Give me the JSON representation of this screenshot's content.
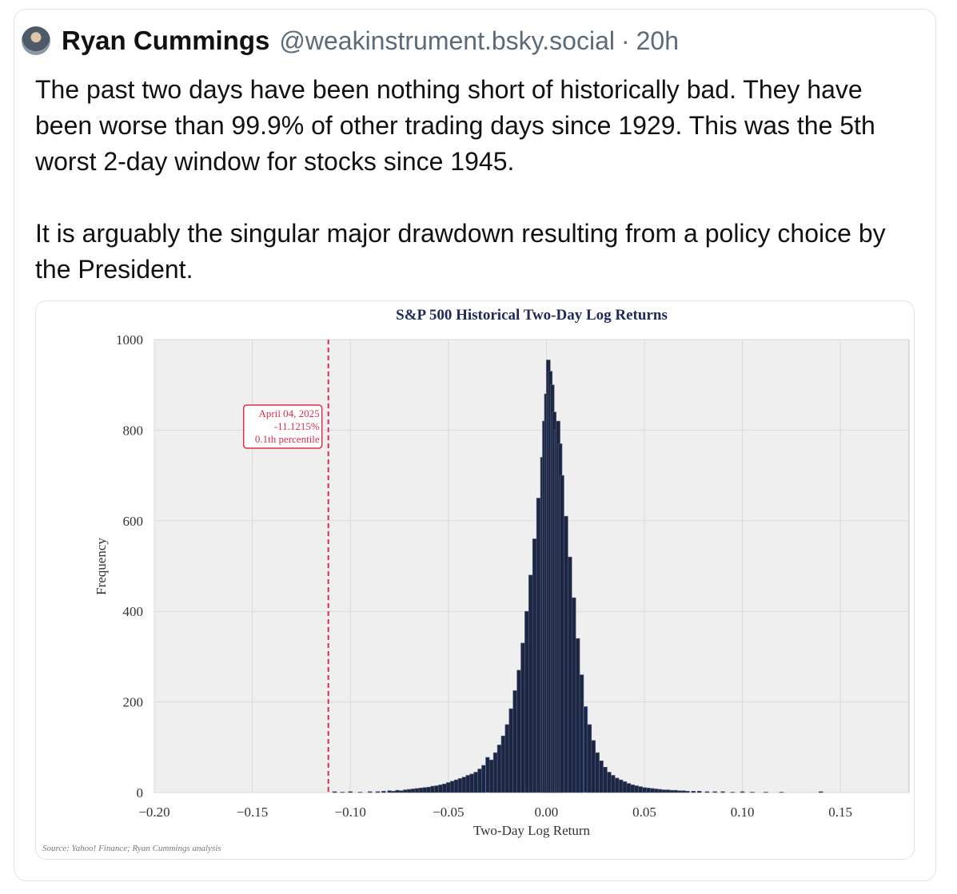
{
  "post": {
    "author_name": "Ryan Cummings",
    "handle": "@weakinstrument.bsky.social",
    "separator": "·",
    "time": "20h",
    "paragraph1": "The past two days have been nothing short of historically bad. They have been worse than 99.9% of other trading days since 1929. This was the 5th worst 2-day window for stocks since 1945.",
    "paragraph2": "It is arguably the singular major drawdown resulting from a policy choice by the President."
  },
  "colors": {
    "bar_fill": "#1c2541",
    "bar_edge": "#55627e",
    "marker_red": "#dc2f4c",
    "title_navy": "#1f2a5a",
    "plot_bg": "#efefef",
    "highlight_bar_edge": "#6a9ae0"
  },
  "chart_data": {
    "type": "bar",
    "title": "S&P 500 Historical Two-Day Log Returns",
    "xlabel": "Two-Day Log Return",
    "ylabel": "Frequency",
    "source": "Source: Yahoo! Finance; Ryan Cummings analysis",
    "xlim": [
      -0.2,
      0.185
    ],
    "ylim": [
      0,
      1000
    ],
    "x_ticks": [
      -0.2,
      -0.15,
      -0.1,
      -0.05,
      0.0,
      0.05,
      0.1,
      0.15
    ],
    "x_tick_labels": [
      "−0.20",
      "−0.15",
      "−0.10",
      "−0.05",
      "0.00",
      "0.05",
      "0.10",
      "0.15"
    ],
    "y_ticks": [
      0,
      200,
      400,
      600,
      800,
      1000
    ],
    "y_tick_labels": [
      "0",
      "200",
      "400",
      "600",
      "800",
      "1000"
    ],
    "grid": true,
    "bin_width": 0.001,
    "bins": [
      [
        -0.108,
        2
      ],
      [
        -0.104,
        1
      ],
      [
        -0.1,
        2
      ],
      [
        -0.095,
        1
      ],
      [
        -0.09,
        2
      ],
      [
        -0.086,
        2
      ],
      [
        -0.083,
        3
      ],
      [
        -0.08,
        4
      ],
      [
        -0.078,
        3
      ],
      [
        -0.076,
        5
      ],
      [
        -0.074,
        4
      ],
      [
        -0.072,
        6
      ],
      [
        -0.07,
        7
      ],
      [
        -0.068,
        8
      ],
      [
        -0.066,
        9
      ],
      [
        -0.064,
        10
      ],
      [
        -0.062,
        11
      ],
      [
        -0.06,
        12
      ],
      [
        -0.058,
        14
      ],
      [
        -0.056,
        15
      ],
      [
        -0.054,
        17
      ],
      [
        -0.052,
        19
      ],
      [
        -0.05,
        22
      ],
      [
        -0.048,
        25
      ],
      [
        -0.046,
        28
      ],
      [
        -0.044,
        31
      ],
      [
        -0.042,
        34
      ],
      [
        -0.04,
        38
      ],
      [
        -0.038,
        41
      ],
      [
        -0.036,
        45
      ],
      [
        -0.034,
        52
      ],
      [
        -0.032,
        60
      ],
      [
        -0.03,
        78
      ],
      [
        -0.028,
        72
      ],
      [
        -0.026,
        88
      ],
      [
        -0.024,
        105
      ],
      [
        -0.022,
        125
      ],
      [
        -0.02,
        150
      ],
      [
        -0.018,
        185
      ],
      [
        -0.016,
        225
      ],
      [
        -0.014,
        270
      ],
      [
        -0.012,
        330
      ],
      [
        -0.01,
        400
      ],
      [
        -0.008,
        480
      ],
      [
        -0.006,
        560
      ],
      [
        -0.004,
        650
      ],
      [
        -0.002,
        740
      ],
      [
        -0.001,
        820
      ],
      [
        0.0,
        880
      ],
      [
        0.001,
        955
      ],
      [
        0.002,
        930
      ],
      [
        0.003,
        900
      ],
      [
        0.004,
        840
      ],
      [
        0.005,
        800
      ],
      [
        0.006,
        820
      ],
      [
        0.007,
        770
      ],
      [
        0.008,
        700
      ],
      [
        0.01,
        610
      ],
      [
        0.012,
        520
      ],
      [
        0.014,
        430
      ],
      [
        0.016,
        340
      ],
      [
        0.018,
        260
      ],
      [
        0.02,
        190
      ],
      [
        0.022,
        150
      ],
      [
        0.024,
        115
      ],
      [
        0.026,
        88
      ],
      [
        0.028,
        70
      ],
      [
        0.03,
        56
      ],
      [
        0.032,
        45
      ],
      [
        0.034,
        38
      ],
      [
        0.036,
        32
      ],
      [
        0.038,
        28
      ],
      [
        0.04,
        24
      ],
      [
        0.042,
        20
      ],
      [
        0.044,
        17
      ],
      [
        0.046,
        15
      ],
      [
        0.048,
        13
      ],
      [
        0.05,
        11
      ],
      [
        0.052,
        10
      ],
      [
        0.054,
        9
      ],
      [
        0.056,
        8
      ],
      [
        0.058,
        7
      ],
      [
        0.06,
        6
      ],
      [
        0.062,
        6
      ],
      [
        0.064,
        5
      ],
      [
        0.066,
        5
      ],
      [
        0.068,
        4
      ],
      [
        0.07,
        4
      ],
      [
        0.072,
        3
      ],
      [
        0.075,
        3
      ],
      [
        0.078,
        3
      ],
      [
        0.082,
        2
      ],
      [
        0.086,
        2
      ],
      [
        0.09,
        2
      ],
      [
        0.095,
        1
      ],
      [
        0.1,
        2
      ],
      [
        0.105,
        1
      ],
      [
        0.112,
        1
      ],
      [
        0.12,
        1
      ],
      [
        0.14,
        2
      ]
    ],
    "highlight_bins": [
      -0.03,
      0.02
    ],
    "marker": {
      "x": -0.111215,
      "line_style": "dashed",
      "annotation": [
        "April 04, 2025",
        "-11.1215%",
        "0.1th percentile"
      ]
    }
  }
}
